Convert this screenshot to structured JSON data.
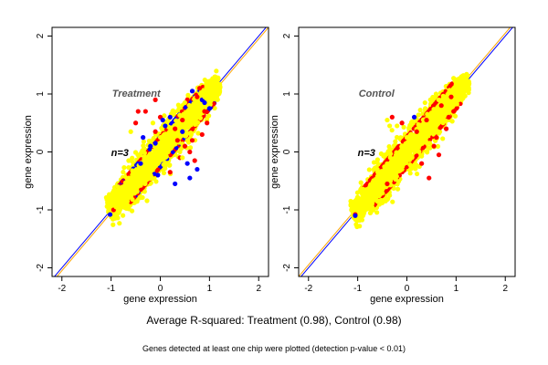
{
  "figure": {
    "summary": "Average R-squared: Treatment (0.98), Control (0.98)",
    "footnote": "Genes detected at least one chip were plotted (detection p-value < 0.01)"
  },
  "colors": {
    "scatter_main": "#ffff00",
    "scatter_red": "#ff0000",
    "scatter_blue": "#0000ff",
    "line_blue": "#0000ff",
    "line_orange": "#ffa500",
    "label_gray": "#555555"
  },
  "chart_data": [
    {
      "type": "scatter",
      "title": "Treatment",
      "annotation": "n=3",
      "xlabel": "gene expression",
      "ylabel": "gene expression",
      "xlim": [
        -2.2,
        2.2
      ],
      "ylim": [
        -2.15,
        2.15
      ],
      "xticks": [
        -2,
        -1,
        0,
        1,
        2
      ],
      "yticks": [
        -2,
        -1,
        0,
        1,
        2
      ],
      "reference_lines": [
        {
          "color": "blue",
          "slope": 1,
          "intercept": 0
        },
        {
          "color": "orange",
          "slope": 1,
          "intercept": -0.05
        }
      ],
      "series": [
        {
          "color": "red",
          "points": [
            [
              0.8,
              1.1
            ],
            [
              0.55,
              0.9
            ],
            [
              0.75,
              0.95
            ],
            [
              0.45,
              0.55
            ],
            [
              -0.3,
              0.7
            ],
            [
              -0.45,
              0.7
            ],
            [
              -0.5,
              0.5
            ],
            [
              -0.1,
              0.9
            ],
            [
              0.5,
              0.1
            ],
            [
              0.6,
              0.0
            ],
            [
              0.7,
              -0.15
            ],
            [
              0.85,
              0.3
            ],
            [
              0.95,
              0.5
            ],
            [
              0.4,
              -0.1
            ],
            [
              -0.1,
              0.35
            ],
            [
              0.0,
              0.6
            ],
            [
              0.3,
              0.4
            ],
            [
              0.65,
              0.2
            ],
            [
              0.9,
              0.7
            ],
            [
              -0.95,
              -1.0
            ],
            [
              0.2,
              -0.35
            ],
            [
              0.35,
              0.2
            ]
          ]
        },
        {
          "color": "blue",
          "points": [
            [
              0.65,
              1.05
            ],
            [
              0.9,
              0.85
            ],
            [
              0.05,
              0.55
            ],
            [
              0.1,
              0.45
            ],
            [
              0.2,
              0.6
            ],
            [
              0.75,
              -0.3
            ],
            [
              0.55,
              -0.2
            ],
            [
              0.45,
              0.35
            ],
            [
              -0.4,
              -0.2
            ],
            [
              -0.35,
              0.25
            ],
            [
              -0.05,
              -0.4
            ],
            [
              -0.1,
              0.15
            ],
            [
              0.6,
              -0.45
            ],
            [
              0.85,
              0.9
            ],
            [
              -0.2,
              0.1
            ],
            [
              1.0,
              0.75
            ],
            [
              -1.02,
              -1.08
            ],
            [
              0.3,
              -0.55
            ]
          ]
        },
        {
          "color": "yellow",
          "points": [
            [
              -0.6,
              0.35
            ],
            [
              -0.75,
              -0.85
            ],
            [
              0.25,
              0.7
            ],
            [
              0.5,
              0.85
            ],
            [
              0.55,
              0.2
            ],
            [
              0.1,
              -0.2
            ],
            [
              0.45,
              -0.1
            ],
            [
              -0.15,
              0.5
            ],
            [
              0.9,
              0.95
            ],
            [
              -0.3,
              -0.5
            ],
            [
              -0.55,
              -0.7
            ],
            [
              -0.9,
              -0.95
            ]
          ]
        }
      ],
      "cloud": {
        "x_range": [
          -1.05,
          1.2
        ],
        "spread": 0.16
      }
    },
    {
      "type": "scatter",
      "title": "Control",
      "annotation": "n=3",
      "xlabel": "gene expression",
      "ylabel": "gene expression",
      "xlim": [
        -2.2,
        2.2
      ],
      "ylim": [
        -2.15,
        2.15
      ],
      "xticks": [
        -2,
        -1,
        0,
        1,
        2
      ],
      "yticks": [
        -2,
        -1,
        0,
        1,
        2
      ],
      "reference_lines": [
        {
          "color": "blue",
          "slope": 1,
          "intercept": 0
        },
        {
          "color": "orange",
          "slope": 1,
          "intercept": 0.05
        }
      ],
      "series": [
        {
          "color": "red",
          "points": [
            [
              0.7,
              0.8
            ],
            [
              0.4,
              0.55
            ],
            [
              0.55,
              0.1
            ],
            [
              0.8,
              0.4
            ],
            [
              0.85,
              0.6
            ],
            [
              0.3,
              -0.2
            ],
            [
              -0.1,
              0.5
            ],
            [
              -0.4,
              -0.55
            ],
            [
              0.45,
              -0.45
            ],
            [
              0.65,
              -0.05
            ],
            [
              0.2,
              0.35
            ],
            [
              0.9,
              0.95
            ],
            [
              0.6,
              0.25
            ],
            [
              -1.05,
              -1.08
            ],
            [
              0.95,
              0.7
            ],
            [
              -0.3,
              0.6
            ]
          ]
        },
        {
          "color": "blue",
          "points": [
            [
              -1.05,
              -1.1
            ],
            [
              0.15,
              0.6
            ]
          ]
        },
        {
          "color": "yellow",
          "points": [
            [
              -0.4,
              0.55
            ],
            [
              -0.35,
              0.45
            ],
            [
              -0.2,
              0.45
            ],
            [
              -0.5,
              -0.65
            ],
            [
              -0.1,
              -0.3
            ],
            [
              -0.35,
              -0.75
            ],
            [
              -0.75,
              -0.6
            ],
            [
              0.05,
              0.2
            ],
            [
              -0.55,
              -0.85
            ],
            [
              0.1,
              -0.1
            ],
            [
              -0.6,
              -0.3
            ],
            [
              -0.25,
              -0.2
            ]
          ]
        }
      ],
      "cloud": {
        "x_range": [
          -1.1,
          1.25
        ],
        "spread": 0.16
      }
    }
  ]
}
